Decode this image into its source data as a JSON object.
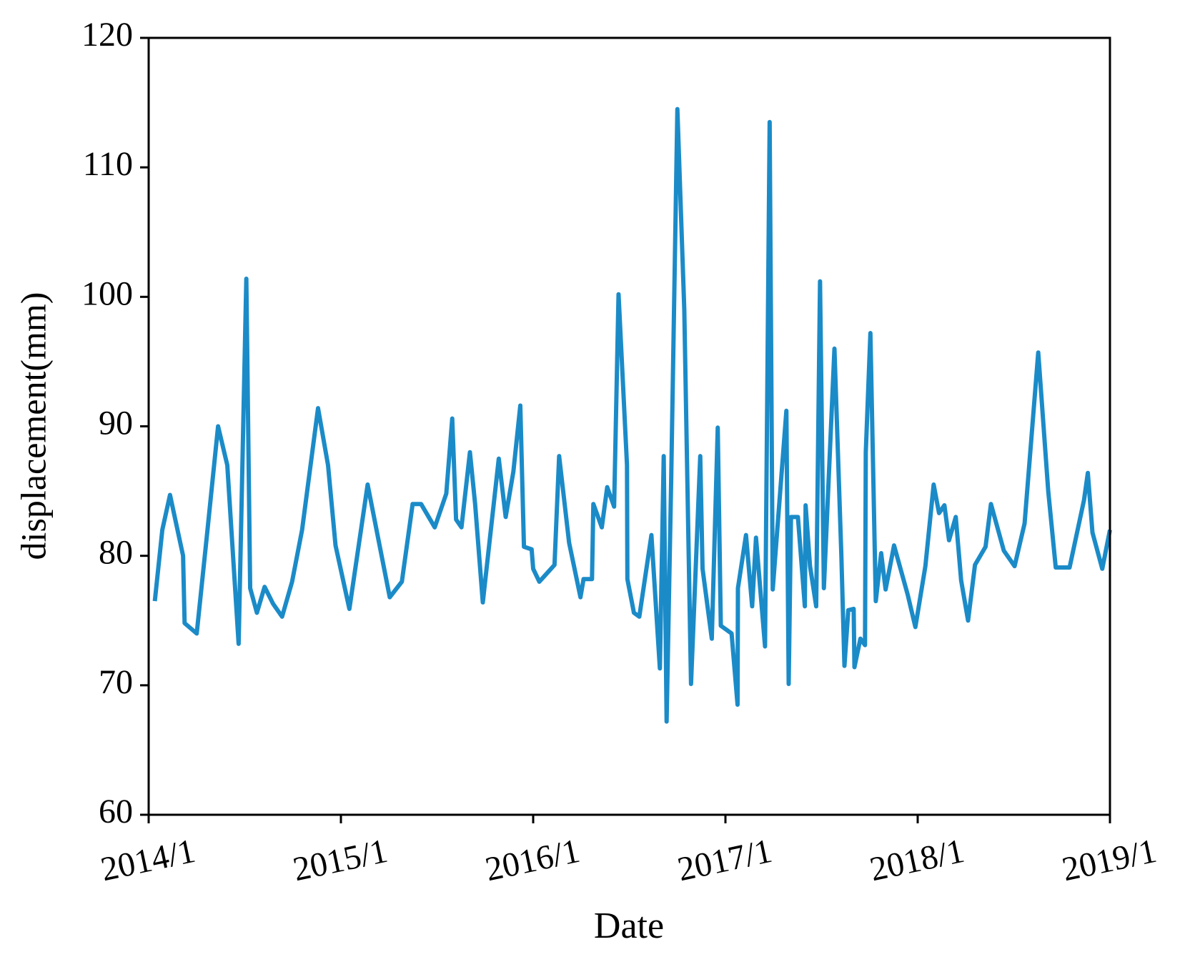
{
  "chart_data": {
    "type": "line",
    "xlabel": "Date",
    "ylabel": "displacement(mm)",
    "xlim": [
      2014,
      2019
    ],
    "ylim": [
      60,
      120
    ],
    "xticks": [
      {
        "value": 2014,
        "label": "2014/1"
      },
      {
        "value": 2015,
        "label": "2015/1"
      },
      {
        "value": 2016,
        "label": "2016/1"
      },
      {
        "value": 2017,
        "label": "2017/1"
      },
      {
        "value": 2018,
        "label": "2018/1"
      },
      {
        "value": 2019,
        "label": "2019/1"
      }
    ],
    "yticks": [
      60,
      70,
      80,
      90,
      100,
      110,
      120
    ],
    "series": [
      {
        "color": "#1b8bc8",
        "x": [
          2014.032,
          2014.071,
          2014.111,
          2014.179,
          2014.187,
          2014.25,
          2014.306,
          2014.361,
          2014.409,
          2014.468,
          2014.508,
          2014.528,
          2014.563,
          2014.603,
          2014.647,
          2014.694,
          2014.746,
          2014.798,
          2014.881,
          2014.933,
          2014.972,
          2015.044,
          2015.139,
          2015.254,
          2015.317,
          2015.373,
          2015.417,
          2015.488,
          2015.548,
          2015.579,
          2015.599,
          2015.627,
          2015.671,
          2015.698,
          2015.738,
          2015.821,
          2015.857,
          2015.897,
          2015.933,
          2015.952,
          2015.992,
          2016.0,
          2016.032,
          2016.111,
          2016.135,
          2016.187,
          2016.246,
          2016.262,
          2016.306,
          2016.313,
          2016.357,
          2016.385,
          2016.421,
          2016.444,
          2016.488,
          2016.49,
          2016.524,
          2016.552,
          2016.615,
          2016.659,
          2016.679,
          2016.694,
          2016.718,
          2016.75,
          2016.786,
          2016.821,
          2016.869,
          2016.881,
          2016.929,
          2016.96,
          2016.976,
          2017.032,
          2017.063,
          2017.065,
          2017.107,
          2017.139,
          2017.159,
          2017.206,
          2017.23,
          2017.246,
          2017.317,
          2017.329,
          2017.341,
          2017.377,
          2017.413,
          2017.417,
          2017.44,
          2017.472,
          2017.492,
          2017.512,
          2017.567,
          2017.603,
          2017.619,
          2017.639,
          2017.667,
          2017.671,
          2017.702,
          2017.726,
          2017.73,
          2017.754,
          2017.782,
          2017.81,
          2017.833,
          2017.877,
          2017.948,
          2017.988,
          2018.04,
          2018.083,
          2018.111,
          2018.139,
          2018.163,
          2018.198,
          2018.226,
          2018.262,
          2018.298,
          2018.353,
          2018.381,
          2018.448,
          2018.504,
          2018.556,
          2018.627,
          2018.679,
          2018.718,
          2018.79,
          2018.865,
          2018.885,
          2018.909,
          2018.96,
          2019.0
        ],
        "values": [
          76.5,
          82,
          84.7,
          80,
          74.8,
          74,
          82,
          90,
          87,
          73.2,
          101.4,
          77.5,
          75.6,
          77.6,
          76.3,
          75.3,
          78,
          82,
          91.4,
          87,
          80.8,
          75.9,
          85.5,
          76.8,
          78,
          84,
          84,
          82.2,
          84.8,
          90.6,
          82.8,
          82.2,
          88,
          84,
          76.4,
          87.5,
          83,
          86.5,
          91.6,
          80.7,
          80.5,
          79,
          78,
          79.3,
          87.7,
          81,
          76.8,
          78.2,
          78.2,
          84,
          82.2,
          85.3,
          83.8,
          100.2,
          87,
          78.2,
          75.6,
          75.3,
          81.6,
          71.3,
          87.7,
          67.2,
          86,
          114.5,
          99,
          70.1,
          87.7,
          79,
          73.6,
          89.9,
          74.6,
          74,
          68.5,
          77.5,
          81.6,
          76.1,
          81.4,
          73,
          113.5,
          77.4,
          91.2,
          70.1,
          83,
          83,
          76.1,
          83.9,
          79.2,
          76.1,
          101.2,
          77.5,
          96,
          80,
          71.5,
          75.8,
          75.9,
          71.4,
          73.6,
          73.1,
          88,
          97.2,
          76.5,
          80.2,
          77.4,
          80.8,
          77,
          74.5,
          79.2,
          85.5,
          83.3,
          83.9,
          81.2,
          83,
          78.1,
          75,
          79.3,
          80.7,
          84,
          80.4,
          79.2,
          82.5,
          95.7,
          85,
          79.1,
          79.1,
          84.3,
          86.4,
          81.8,
          79,
          82
        ]
      }
    ]
  }
}
